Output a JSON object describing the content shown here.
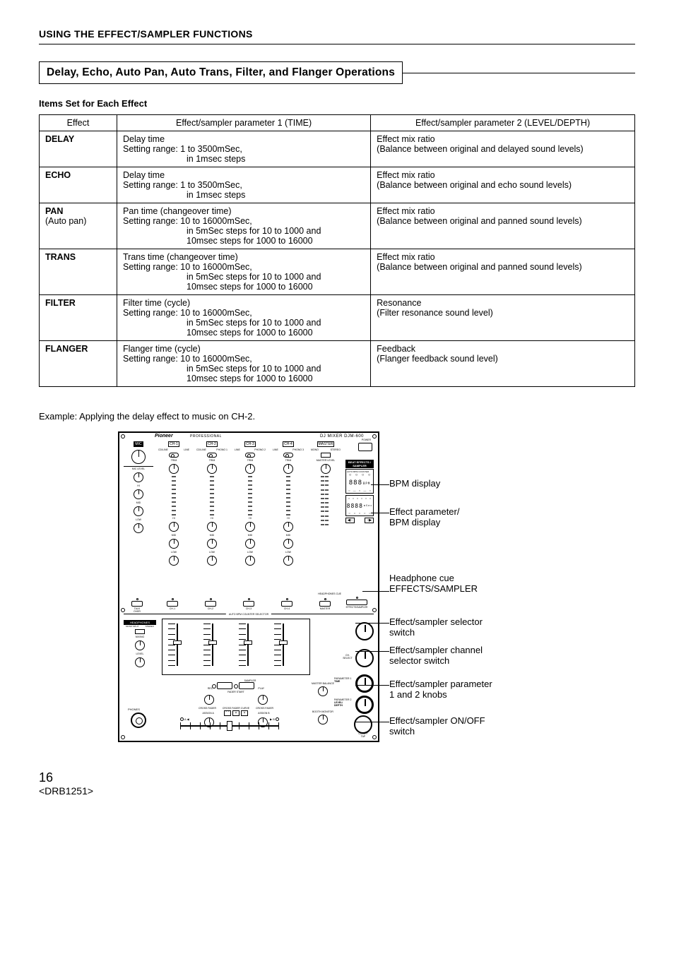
{
  "section_header": "USING THE EFFECT/SAMPLER FUNCTIONS",
  "boxed_title": "Delay, Echo, Auto Pan, Auto Trans, Filter, and Flanger Operations",
  "subhead": "Items Set for Each Effect",
  "table": {
    "headers": [
      "Effect",
      "Effect/sampler parameter 1 (TIME)",
      "Effect/sampler parameter 2 (LEVEL/DEPTH)"
    ],
    "rows": [
      {
        "name": "DELAY",
        "sub": "",
        "p1_l1": "Delay time",
        "p1_l2": "Setting range: 1 to 3500mSec,",
        "p1_l3": "in 1msec steps",
        "p1_l4": "",
        "p2_l1": "Effect mix ratio",
        "p2_l2": "(Balance between original and delayed sound levels)"
      },
      {
        "name": "ECHO",
        "sub": "",
        "p1_l1": "Delay time",
        "p1_l2": "Setting range: 1 to 3500mSec,",
        "p1_l3": "in 1msec steps",
        "p1_l4": "",
        "p2_l1": "Effect mix ratio",
        "p2_l2": "(Balance between original and echo sound levels)"
      },
      {
        "name": "PAN",
        "sub": "(Auto pan)",
        "p1_l1": "Pan time (changeover time)",
        "p1_l2": "Setting range: 10 to 16000mSec,",
        "p1_l3": "in 5mSec steps for 10 to 1000 and",
        "p1_l4": "10msec steps for 1000 to 16000",
        "p2_l1": "Effect mix ratio",
        "p2_l2": "(Balance between original and panned sound levels)"
      },
      {
        "name": "TRANS",
        "sub": "",
        "p1_l1": "Trans time (changeover time)",
        "p1_l2": "Setting range: 10 to 16000mSec,",
        "p1_l3": "in 5mSec steps for 10 to 1000 and",
        "p1_l4": "10msec steps for 1000 to 16000",
        "p2_l1": "Effect mix ratio",
        "p2_l2": "(Balance between original and panned sound levels)"
      },
      {
        "name": "FILTER",
        "sub": "",
        "p1_l1": "Filter time (cycle)",
        "p1_l2": "Setting range: 10 to 16000mSec,",
        "p1_l3": "in 5mSec steps for 10 to 1000 and",
        "p1_l4": "10msec steps for 1000 to 16000",
        "p2_l1": "Resonance",
        "p2_l2": "(Filter resonance sound level)"
      },
      {
        "name": "FLANGER",
        "sub": "",
        "p1_l1": "Flanger time (cycle)",
        "p1_l2": "Setting range: 10 to 16000mSec,",
        "p1_l3": "in 5mSec steps for 10 to 1000 and",
        "p1_l4": "10msec steps for 1000 to 16000",
        "p2_l1": "Feedback",
        "p2_l2": "(Flanger feedback sound level)"
      }
    ]
  },
  "example_line": "Example: Applying the delay effect to music on CH-2.",
  "mixer": {
    "brand": "Pioneer",
    "prof": "PROFESSIONAL",
    "model_prefix": "DJ MIXER",
    "model": "DJM-600",
    "mic": "MIC",
    "ch1": "CH-1",
    "ch2": "CH-2",
    "ch3": "CH-3",
    "ch4": "CH-4",
    "master": "MASTER",
    "power": "POWER",
    "mic_level": "MIC LEVEL",
    "trim": "TRIM",
    "master_level": "MASTER LEVEL",
    "cd_line": "CD/LINE",
    "line": "LINE",
    "phono1": "PHONO 1",
    "phono2": "PHONO 2",
    "phono3": "PHONO 3",
    "subrec": "SUB MIC",
    "mono": "MONO",
    "stereo": "STEREO",
    "hi": "HI",
    "mid": "MID",
    "low": "LOW",
    "eq": "EQ",
    "headphones_cue": "HEADPHONES CUE",
    "talk_over": "TALK OVER",
    "effects_sampler": "EFFECTS/SAMPLER",
    "auto_bpm": "AUTO BPM COUNTER SELECTOR",
    "headphones": "HEADPHONES",
    "mono_split": "MONO SPLIT",
    "stereo2": "STEREO",
    "mixing": "MIXING",
    "level": "LEVEL",
    "phones": "PHONES",
    "sampler": "SAMPLER",
    "rec": "REC",
    "play": "PLAY",
    "fader_start": "FADER START",
    "cross_fader_curve": "CROSS FADER CURVE",
    "cross_fader": "CROSS FADER",
    "assign_a": "ASSIGN A",
    "assign_b": "ASSIGN B",
    "master_balance": "MASTER BALANCE",
    "booth_monitor": "BOOTH MONITOR",
    "beat_label": "BEAT EFFECTS / SAMPLER",
    "auto_bpm_counter": "AUTO BPM COUNTER",
    "bpm_small": "BPM",
    "bpm_val": "888",
    "param_val": "8888",
    "param1": "PARAMETER 1",
    "time_lbl": "TIME",
    "param2": "PARAMETER 2",
    "level_depth": "LEVEL/\nDEPTH",
    "ch_sel": "CH.\nSELECT",
    "onoff": "ON/OFF\nTAP",
    "msec": "mSec",
    "a_lbl": "A",
    "b_lbl": "B"
  },
  "callouts": {
    "bpm": "BPM display",
    "param_l1": "Effect parameter/",
    "param_l2": "BPM display",
    "cue_l1": "Headphone cue",
    "cue_l2": "EFFECTS/SAMPLER",
    "selector_l1": "Effect/sampler selector",
    "selector_l2": "switch",
    "chsel_l1": "Effect/sampler channel",
    "chsel_l2": "selector switch",
    "knobs_l1": "Effect/sampler parameter",
    "knobs_l2": "1 and 2 knobs",
    "onoff_l1": "Effect/sampler ON/OFF",
    "onoff_l2": "switch"
  },
  "footer": {
    "page": "16",
    "code": "<DRB1251>"
  }
}
